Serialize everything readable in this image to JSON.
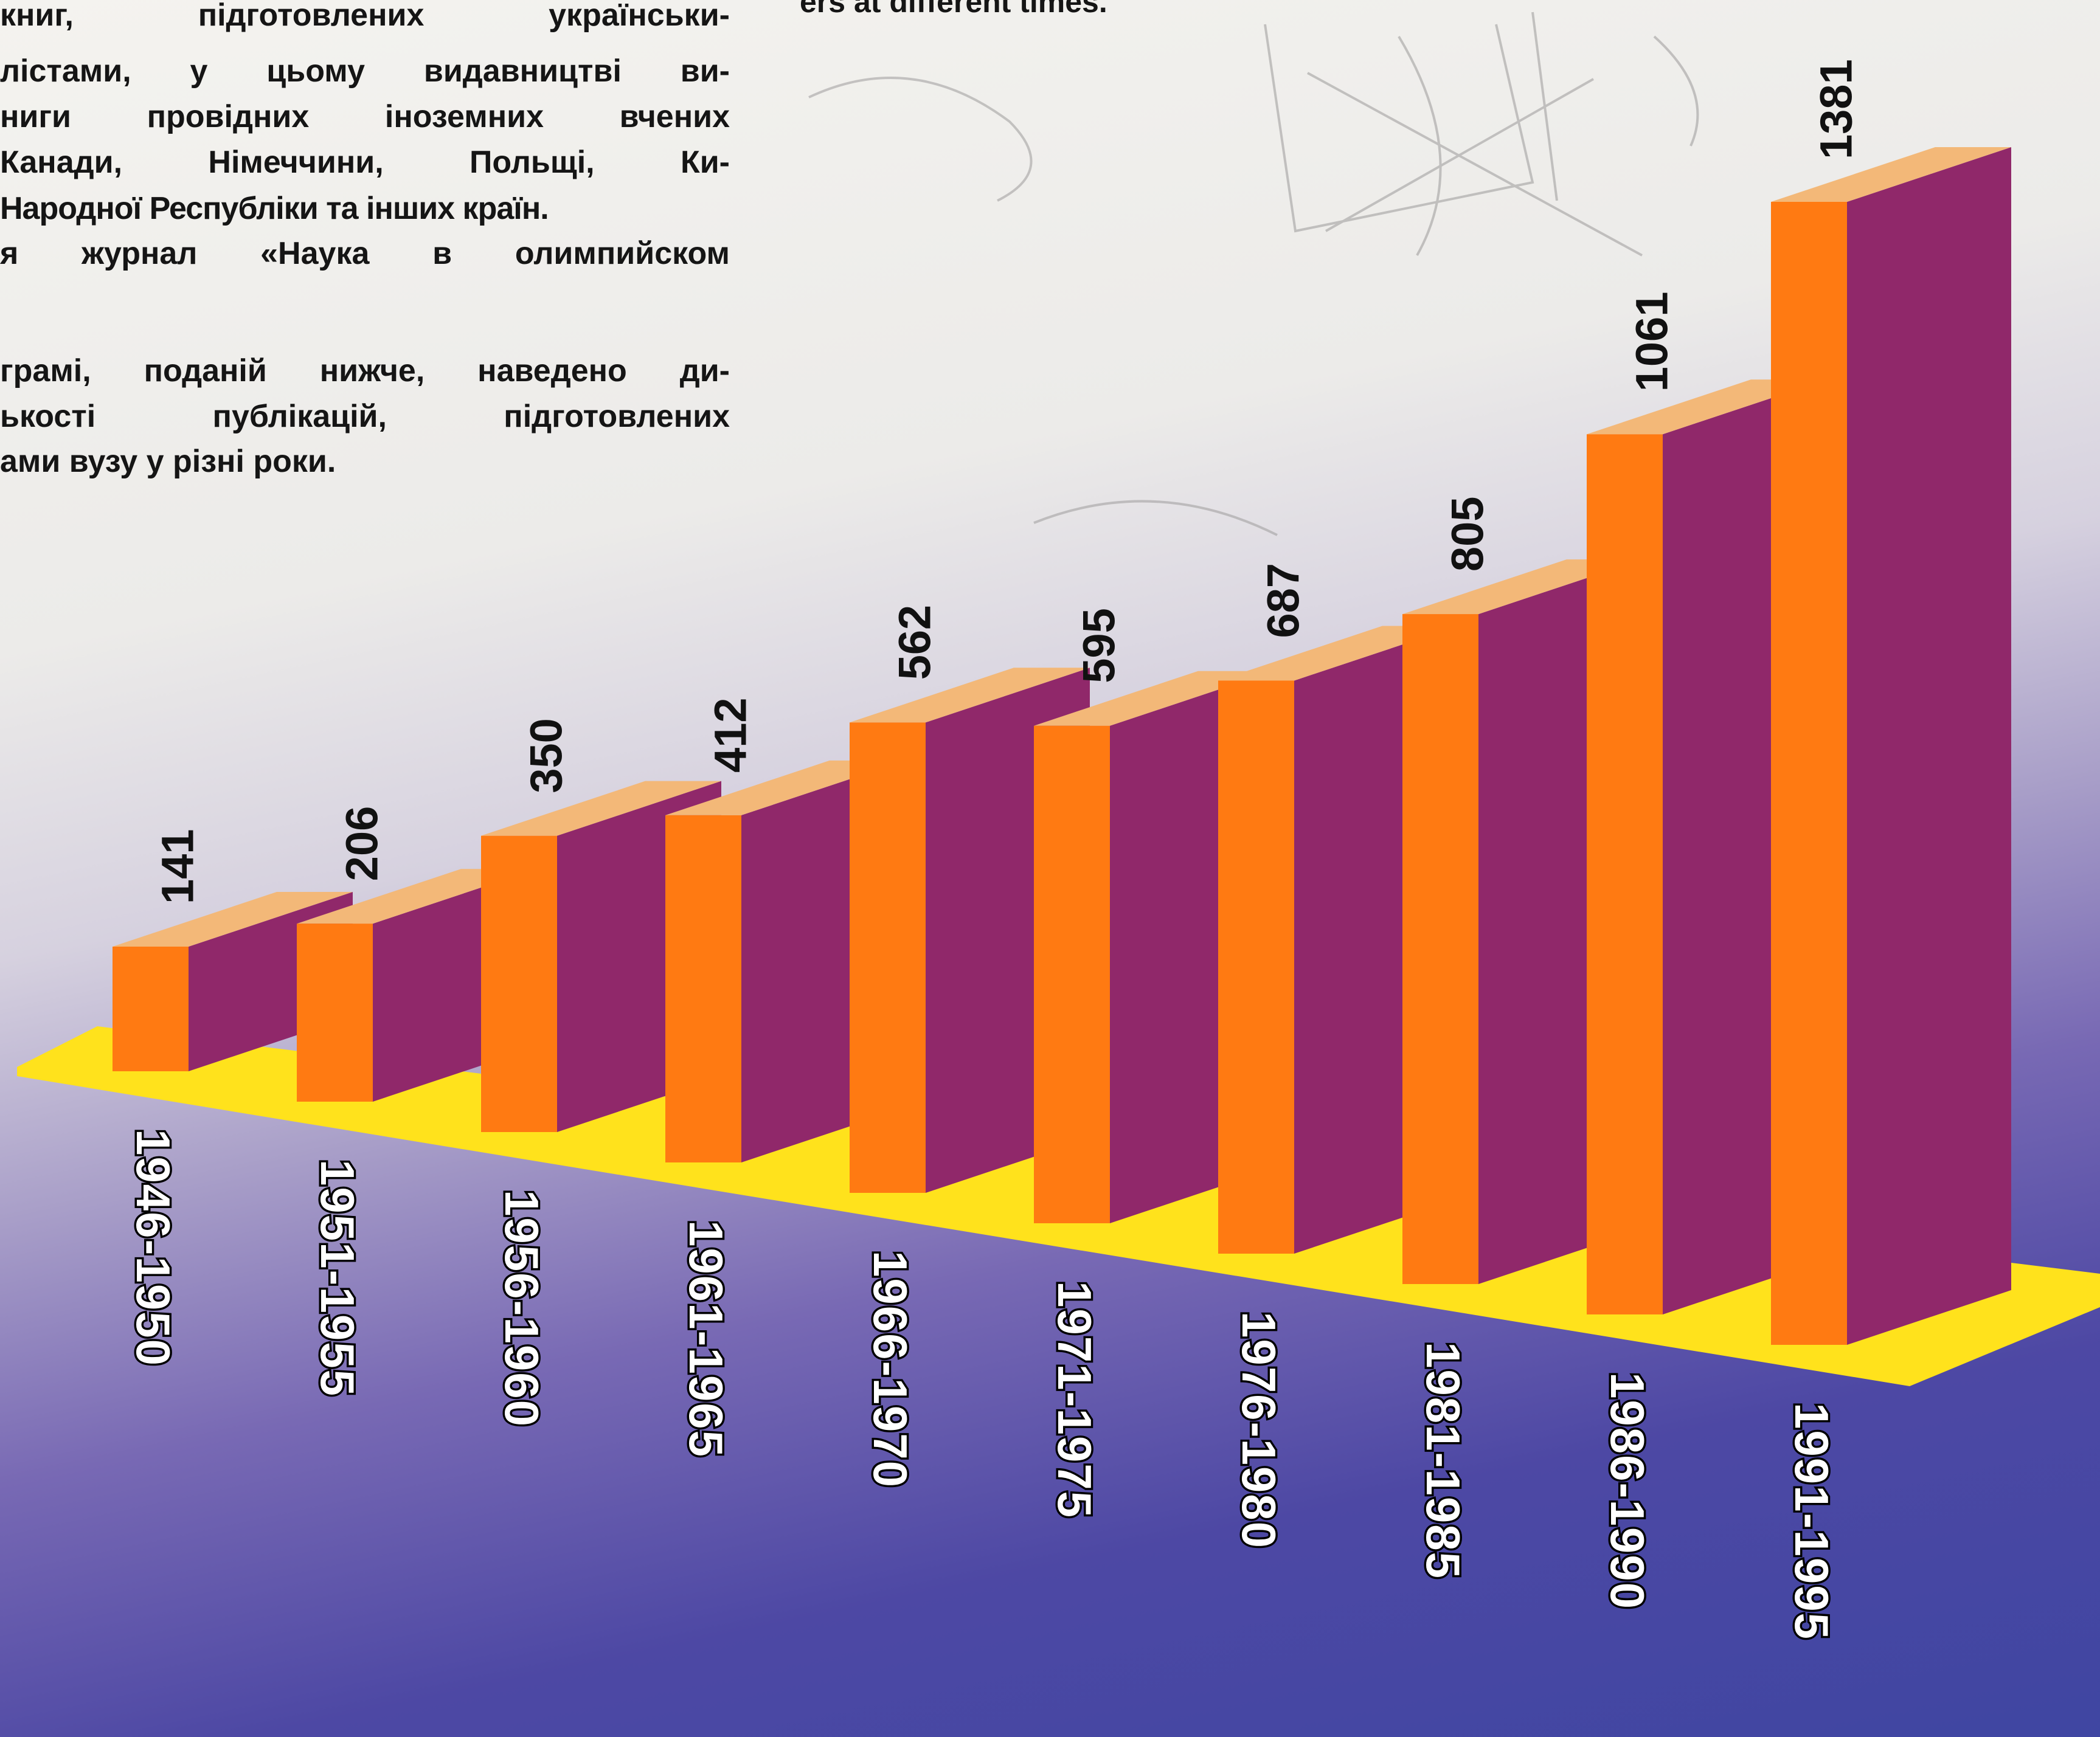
{
  "page_text": {
    "ua_lines": [
      "книг, підготовлених українськи-",
      "лістами, у цьому видавництві ви-",
      "ниги провідних іноземних вчених",
      "Канади, Німеччини, Польщі, Ки-",
      "Народної Республіки та інших країн.",
      "я журнал «Наука в олимпийском",
      "",
      "грамі, поданій нижче, наведено ди-",
      "ькості публікацій, підготовлених",
      "ами вузу у різні роки."
    ],
    "en_caption": "ers at different times."
  },
  "colors": {
    "front": "#ff7a12",
    "side": "#90286a",
    "top": "#f3b878",
    "floor": "#ffe21c"
  },
  "chart_data": {
    "type": "bar",
    "categories": [
      "1946-1950",
      "1951-1955",
      "1956-1960",
      "1961-1965",
      "1966-1970",
      "1971-1975",
      "1976-1980",
      "1981-1985",
      "1986-1990",
      "1991-1995"
    ],
    "values": [
      141,
      206,
      350,
      412,
      562,
      595,
      687,
      805,
      1061,
      1381
    ],
    "value_labels": [
      "141",
      "206",
      "350",
      "412",
      "562",
      "595",
      "687",
      "805",
      "1061",
      "1381"
    ],
    "title": "",
    "xlabel": "",
    "ylabel": "",
    "ylim": [
      0,
      1381
    ],
    "grid": false,
    "legend": "none",
    "style": "3d-perspective"
  }
}
